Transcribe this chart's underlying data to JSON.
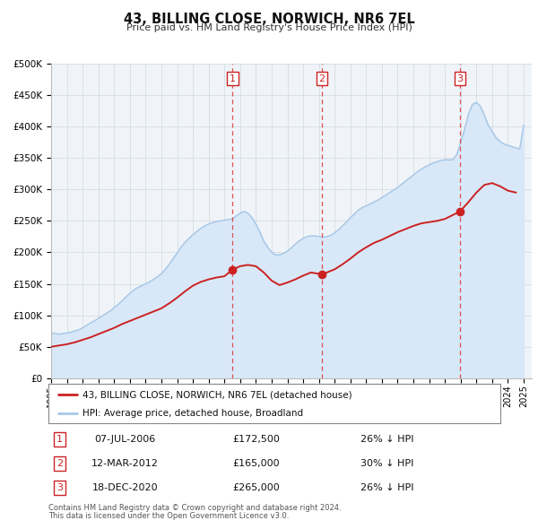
{
  "title": "43, BILLING CLOSE, NORWICH, NR6 7EL",
  "subtitle": "Price paid vs. HM Land Registry's House Price Index (HPI)",
  "hpi_label": "HPI: Average price, detached house, Broadland",
  "property_label": "43, BILLING CLOSE, NORWICH, NR6 7EL (detached house)",
  "footer_line1": "Contains HM Land Registry data © Crown copyright and database right 2024.",
  "footer_line2": "This data is licensed under the Open Government Licence v3.0.",
  "transactions": [
    {
      "num": 1,
      "date": "07-JUL-2006",
      "year": 2006.52,
      "price": 172500,
      "pct": "26% ↓ HPI"
    },
    {
      "num": 2,
      "date": "12-MAR-2012",
      "year": 2012.19,
      "price": 165000,
      "pct": "30% ↓ HPI"
    },
    {
      "num": 3,
      "date": "18-DEC-2020",
      "year": 2020.96,
      "price": 265000,
      "pct": "26% ↓ HPI"
    }
  ],
  "ylim": [
    0,
    500000
  ],
  "yticks": [
    0,
    50000,
    100000,
    150000,
    200000,
    250000,
    300000,
    350000,
    400000,
    450000,
    500000
  ],
  "ytick_labels": [
    "£0",
    "£50K",
    "£100K",
    "£150K",
    "£200K",
    "£250K",
    "£300K",
    "£350K",
    "£400K",
    "£450K",
    "£500K"
  ],
  "xlim_start": 1995.0,
  "xlim_end": 2025.5,
  "xticks": [
    1995,
    1996,
    1997,
    1998,
    1999,
    2000,
    2001,
    2002,
    2003,
    2004,
    2005,
    2006,
    2007,
    2008,
    2009,
    2010,
    2011,
    2012,
    2013,
    2014,
    2015,
    2016,
    2017,
    2018,
    2019,
    2020,
    2021,
    2022,
    2023,
    2024,
    2025
  ],
  "hpi_color": "#a8c8e8",
  "property_color": "#cc2222",
  "dot_color": "#cc2222",
  "vline_color": "#dd3333",
  "shade_color": "#d8e8f8",
  "background_color": "#f0f4f8",
  "grid_color": "#d0d8e0",
  "hpi_data_x": [
    1995.0,
    1995.25,
    1995.5,
    1995.75,
    1996.0,
    1996.25,
    1996.5,
    1996.75,
    1997.0,
    1997.25,
    1997.5,
    1997.75,
    1998.0,
    1998.25,
    1998.5,
    1998.75,
    1999.0,
    1999.25,
    1999.5,
    1999.75,
    2000.0,
    2000.25,
    2000.5,
    2000.75,
    2001.0,
    2001.25,
    2001.5,
    2001.75,
    2002.0,
    2002.25,
    2002.5,
    2002.75,
    2003.0,
    2003.25,
    2003.5,
    2003.75,
    2004.0,
    2004.25,
    2004.5,
    2004.75,
    2005.0,
    2005.25,
    2005.5,
    2005.75,
    2006.0,
    2006.25,
    2006.5,
    2006.75,
    2007.0,
    2007.25,
    2007.5,
    2007.75,
    2008.0,
    2008.25,
    2008.5,
    2008.75,
    2009.0,
    2009.25,
    2009.5,
    2009.75,
    2010.0,
    2010.25,
    2010.5,
    2010.75,
    2011.0,
    2011.25,
    2011.5,
    2011.75,
    2012.0,
    2012.25,
    2012.5,
    2012.75,
    2013.0,
    2013.25,
    2013.5,
    2013.75,
    2014.0,
    2014.25,
    2014.5,
    2014.75,
    2015.0,
    2015.25,
    2015.5,
    2015.75,
    2016.0,
    2016.25,
    2016.5,
    2016.75,
    2017.0,
    2017.25,
    2017.5,
    2017.75,
    2018.0,
    2018.25,
    2018.5,
    2018.75,
    2019.0,
    2019.25,
    2019.5,
    2019.75,
    2020.0,
    2020.25,
    2020.5,
    2020.75,
    2021.0,
    2021.25,
    2021.5,
    2021.75,
    2022.0,
    2022.25,
    2022.5,
    2022.75,
    2023.0,
    2023.25,
    2023.5,
    2023.75,
    2024.0,
    2024.25,
    2024.5,
    2024.75,
    2025.0
  ],
  "hpi_data_y": [
    72000,
    71000,
    70000,
    71000,
    72000,
    73000,
    75000,
    77000,
    80000,
    84000,
    88000,
    91000,
    95000,
    99000,
    103000,
    107000,
    112000,
    117000,
    123000,
    129000,
    135000,
    140000,
    144000,
    147000,
    150000,
    153000,
    157000,
    161000,
    166000,
    173000,
    181000,
    190000,
    199000,
    208000,
    216000,
    222000,
    228000,
    233000,
    238000,
    242000,
    245000,
    247000,
    249000,
    250000,
    251000,
    252000,
    253000,
    258000,
    262000,
    265000,
    262000,
    255000,
    245000,
    232000,
    218000,
    208000,
    200000,
    196000,
    196000,
    198000,
    202000,
    207000,
    213000,
    218000,
    222000,
    225000,
    226000,
    226000,
    225000,
    224000,
    225000,
    227000,
    231000,
    236000,
    242000,
    248000,
    255000,
    261000,
    267000,
    271000,
    274000,
    277000,
    280000,
    283000,
    287000,
    291000,
    295000,
    299000,
    303000,
    308000,
    313000,
    318000,
    323000,
    328000,
    332000,
    336000,
    339000,
    342000,
    344000,
    346000,
    347000,
    347000,
    347000,
    355000,
    375000,
    395000,
    420000,
    435000,
    438000,
    432000,
    418000,
    402000,
    392000,
    382000,
    376000,
    372000,
    370000,
    368000,
    366000,
    364000,
    402000
  ],
  "property_data_x": [
    1995.0,
    1995.5,
    1996.0,
    1996.5,
    1997.0,
    1997.5,
    1998.0,
    1998.5,
    1999.0,
    1999.5,
    2000.0,
    2000.5,
    2001.0,
    2001.5,
    2002.0,
    2002.5,
    2003.0,
    2003.5,
    2004.0,
    2004.5,
    2005.0,
    2005.5,
    2006.0,
    2006.52,
    2007.0,
    2007.5,
    2008.0,
    2008.5,
    2009.0,
    2009.5,
    2010.0,
    2010.5,
    2011.0,
    2011.5,
    2012.19,
    2012.5,
    2013.0,
    2013.5,
    2014.0,
    2014.5,
    2015.0,
    2015.5,
    2016.0,
    2016.5,
    2017.0,
    2017.5,
    2018.0,
    2018.5,
    2019.0,
    2019.5,
    2020.0,
    2020.96,
    2021.5,
    2022.0,
    2022.5,
    2023.0,
    2023.5,
    2024.0,
    2024.5
  ],
  "property_data_y": [
    50000,
    52000,
    54000,
    57000,
    61000,
    65000,
    70000,
    75000,
    80000,
    86000,
    91000,
    96000,
    101000,
    106000,
    111000,
    119000,
    128000,
    138000,
    147000,
    153000,
    157000,
    160000,
    162000,
    172500,
    178000,
    180000,
    178000,
    168000,
    155000,
    148000,
    152000,
    157000,
    163000,
    168000,
    165000,
    168000,
    173000,
    181000,
    190000,
    200000,
    208000,
    215000,
    220000,
    226000,
    232000,
    237000,
    242000,
    246000,
    248000,
    250000,
    253000,
    265000,
    280000,
    295000,
    307000,
    310000,
    305000,
    298000,
    295000
  ]
}
